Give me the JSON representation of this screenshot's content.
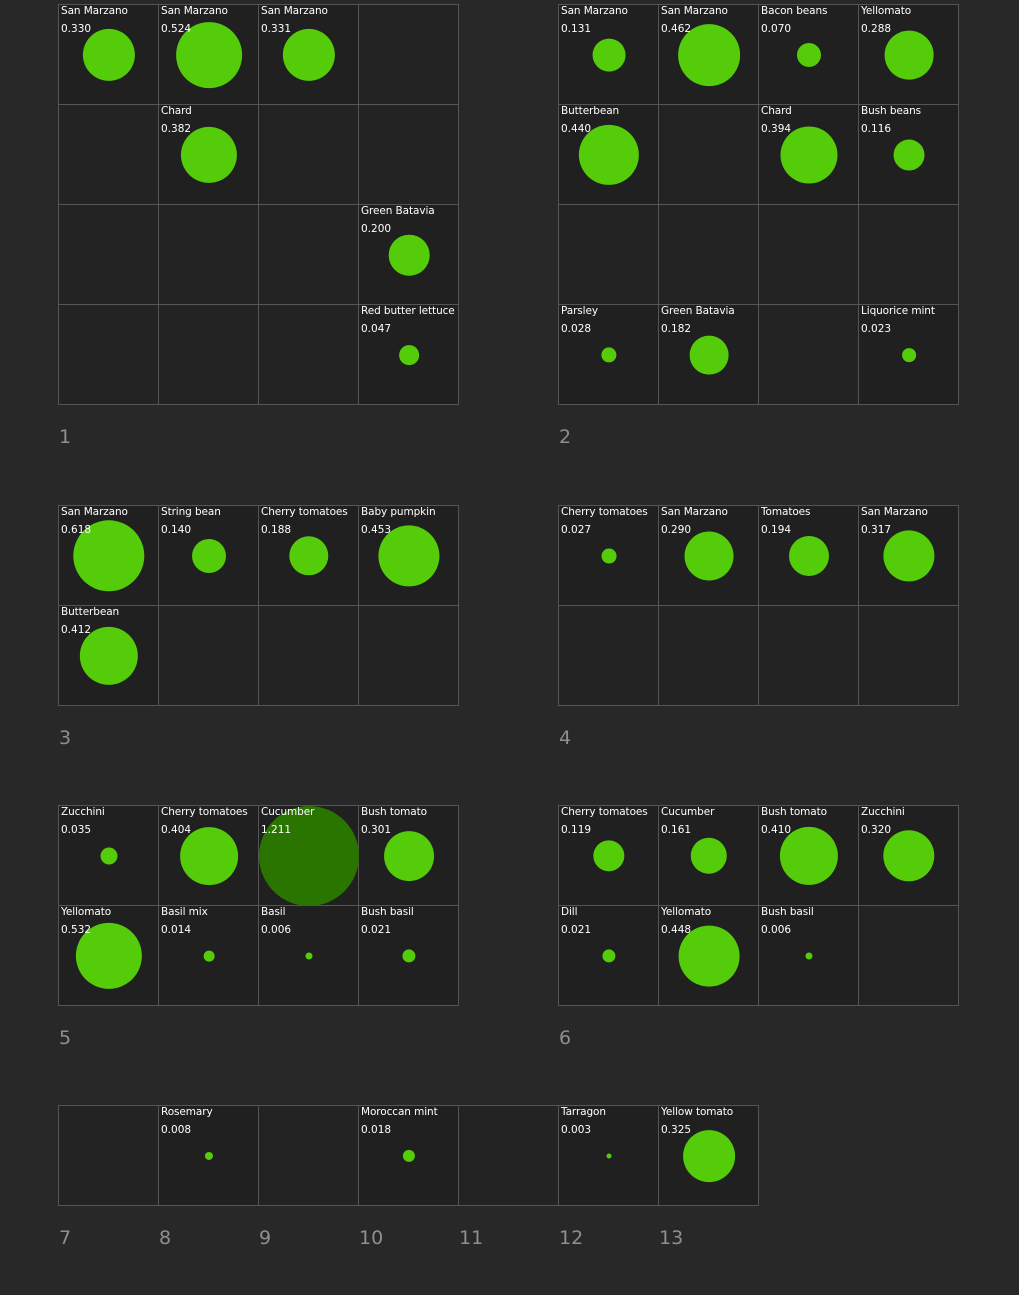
{
  "colors": {
    "background": "#282828",
    "cell_background": "#232323",
    "grid_line": "#555555",
    "bubble": "#55cc0a",
    "bubble_large": "#2a7400",
    "text": "#ffffff",
    "bed_label": "#8f8f8f"
  },
  "beds": [
    {
      "label": "1",
      "rows": 4,
      "cols": 4,
      "plants": [
        {
          "row": 0,
          "col": 0,
          "name": "San Marzano",
          "value": "0.330"
        },
        {
          "row": 0,
          "col": 1,
          "name": "San Marzano",
          "value": "0.524"
        },
        {
          "row": 0,
          "col": 2,
          "name": "San Marzano",
          "value": "0.331"
        },
        {
          "row": 1,
          "col": 1,
          "name": "Chard",
          "value": "0.382"
        },
        {
          "row": 2,
          "col": 3,
          "name": "Green Batavia",
          "value": "0.200"
        },
        {
          "row": 3,
          "col": 3,
          "name": "Red butter lettuce",
          "value": "0.047"
        }
      ]
    },
    {
      "label": "2",
      "rows": 4,
      "cols": 4,
      "plants": [
        {
          "row": 0,
          "col": 0,
          "name": "San Marzano",
          "value": "0.131"
        },
        {
          "row": 0,
          "col": 1,
          "name": "San Marzano",
          "value": "0.462"
        },
        {
          "row": 0,
          "col": 2,
          "name": "Bacon beans",
          "value": "0.070"
        },
        {
          "row": 0,
          "col": 3,
          "name": "Yellomato",
          "value": "0.288"
        },
        {
          "row": 1,
          "col": 0,
          "name": "Butterbean",
          "value": "0.440"
        },
        {
          "row": 1,
          "col": 2,
          "name": "Chard",
          "value": "0.394"
        },
        {
          "row": 1,
          "col": 3,
          "name": "Bush beans",
          "value": "0.116"
        },
        {
          "row": 3,
          "col": 0,
          "name": "Parsley",
          "value": "0.028"
        },
        {
          "row": 3,
          "col": 1,
          "name": "Green Batavia",
          "value": "0.182"
        },
        {
          "row": 3,
          "col": 3,
          "name": "Liquorice mint",
          "value": "0.023"
        }
      ]
    },
    {
      "label": "3",
      "rows": 2,
      "cols": 4,
      "plants": [
        {
          "row": 0,
          "col": 0,
          "name": "San Marzano",
          "value": "0.618"
        },
        {
          "row": 0,
          "col": 1,
          "name": "String bean",
          "value": "0.140"
        },
        {
          "row": 0,
          "col": 2,
          "name": "Cherry tomatoes",
          "value": "0.188"
        },
        {
          "row": 0,
          "col": 3,
          "name": "Baby pumpkin",
          "value": "0.453"
        },
        {
          "row": 1,
          "col": 0,
          "name": "Butterbean",
          "value": "0.412"
        }
      ]
    },
    {
      "label": "4",
      "rows": 2,
      "cols": 4,
      "plants": [
        {
          "row": 0,
          "col": 0,
          "name": "Cherry tomatoes",
          "value": "0.027"
        },
        {
          "row": 0,
          "col": 1,
          "name": "San Marzano",
          "value": "0.290"
        },
        {
          "row": 0,
          "col": 2,
          "name": "Tomatoes",
          "value": "0.194"
        },
        {
          "row": 0,
          "col": 3,
          "name": "San Marzano",
          "value": "0.317"
        }
      ]
    },
    {
      "label": "5",
      "rows": 2,
      "cols": 4,
      "plants": [
        {
          "row": 0,
          "col": 0,
          "name": "Zucchini",
          "value": "0.035"
        },
        {
          "row": 0,
          "col": 1,
          "name": "Cherry tomatoes",
          "value": "0.404"
        },
        {
          "row": 0,
          "col": 2,
          "name": "Cucumber",
          "value": "1.211"
        },
        {
          "row": 0,
          "col": 3,
          "name": "Bush tomato",
          "value": "0.301"
        },
        {
          "row": 1,
          "col": 0,
          "name": "Yellomato",
          "value": "0.532"
        },
        {
          "row": 1,
          "col": 1,
          "name": "Basil mix",
          "value": "0.014"
        },
        {
          "row": 1,
          "col": 2,
          "name": "Basil",
          "value": "0.006"
        },
        {
          "row": 1,
          "col": 3,
          "name": "Bush basil",
          "value": "0.021"
        }
      ]
    },
    {
      "label": "6",
      "rows": 2,
      "cols": 4,
      "plants": [
        {
          "row": 0,
          "col": 0,
          "name": "Cherry tomatoes",
          "value": "0.119"
        },
        {
          "row": 0,
          "col": 1,
          "name": "Cucumber",
          "value": "0.161"
        },
        {
          "row": 0,
          "col": 2,
          "name": "Bush tomato",
          "value": "0.410"
        },
        {
          "row": 0,
          "col": 3,
          "name": "Zucchini",
          "value": "0.320"
        },
        {
          "row": 1,
          "col": 0,
          "name": "Dill",
          "value": "0.021"
        },
        {
          "row": 1,
          "col": 1,
          "name": "Yellomato",
          "value": "0.448"
        },
        {
          "row": 1,
          "col": 2,
          "name": "Bush basil",
          "value": "0.006"
        }
      ]
    }
  ],
  "pots": [
    {
      "label": "7",
      "plant": null
    },
    {
      "label": "8",
      "plant": {
        "name": "Rosemary",
        "value": "0.008"
      }
    },
    {
      "label": "9",
      "plant": null
    },
    {
      "label": "10",
      "plant": {
        "name": "Moroccan mint",
        "value": "0.018"
      }
    },
    {
      "label": "11",
      "plant": null
    },
    {
      "label": "12",
      "plant": {
        "name": "Tarragon",
        "value": "0.003"
      }
    },
    {
      "label": "13",
      "plant": {
        "name": "Yellow tomato",
        "value": "0.325"
      }
    }
  ]
}
